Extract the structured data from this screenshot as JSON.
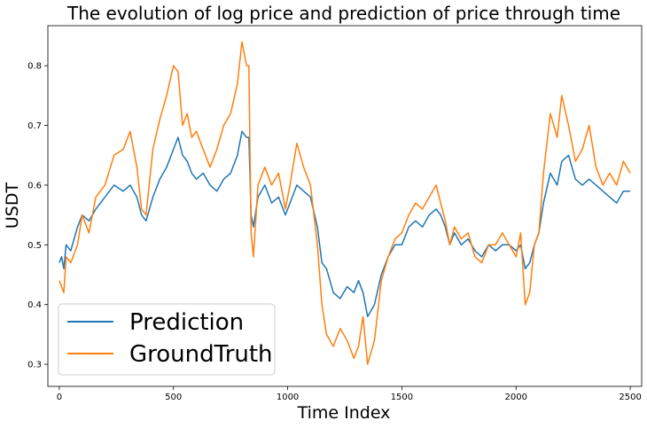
{
  "chart_data": {
    "type": "line",
    "title": "The evolution of log price and prediction of price through time",
    "xlabel": "Time Index",
    "ylabel": "USDT",
    "xlim": [
      -50,
      2550
    ],
    "ylim": [
      0.263,
      0.867
    ],
    "xticks": [
      0,
      500,
      1000,
      1500,
      2000,
      2500
    ],
    "yticks": [
      0.3,
      0.4,
      0.5,
      0.6,
      0.7,
      0.8
    ],
    "xtick_labels": [
      "0",
      "500",
      "1000",
      "1500",
      "2000",
      "2500"
    ],
    "ytick_labels": [
      "0.3",
      "0.4",
      "0.5",
      "0.6",
      "0.7",
      "0.8"
    ],
    "grid": false,
    "legend_position": "lower-left",
    "series": [
      {
        "name": "Prediction",
        "color": "#1f77b4",
        "x": [
          0,
          10,
          20,
          30,
          50,
          80,
          100,
          130,
          160,
          200,
          240,
          280,
          310,
          340,
          360,
          380,
          410,
          440,
          470,
          500,
          520,
          540,
          560,
          580,
          600,
          630,
          660,
          690,
          720,
          750,
          780,
          800,
          820,
          830,
          840,
          850,
          870,
          900,
          930,
          960,
          990,
          1010,
          1040,
          1070,
          1100,
          1130,
          1150,
          1170,
          1200,
          1230,
          1260,
          1290,
          1310,
          1330,
          1350,
          1380,
          1410,
          1440,
          1470,
          1500,
          1530,
          1560,
          1590,
          1620,
          1650,
          1670,
          1690,
          1710,
          1730,
          1760,
          1790,
          1820,
          1850,
          1880,
          1910,
          1940,
          1970,
          2000,
          2020,
          2040,
          2060,
          2080,
          2100,
          2120,
          2150,
          2180,
          2200,
          2230,
          2260,
          2290,
          2320,
          2350,
          2380,
          2410,
          2440,
          2470,
          2500
        ],
        "y": [
          0.47,
          0.48,
          0.46,
          0.5,
          0.49,
          0.53,
          0.55,
          0.54,
          0.56,
          0.58,
          0.6,
          0.59,
          0.6,
          0.58,
          0.55,
          0.54,
          0.58,
          0.61,
          0.63,
          0.66,
          0.68,
          0.65,
          0.64,
          0.62,
          0.61,
          0.62,
          0.6,
          0.59,
          0.61,
          0.62,
          0.65,
          0.69,
          0.68,
          0.68,
          0.55,
          0.53,
          0.58,
          0.6,
          0.57,
          0.58,
          0.55,
          0.57,
          0.6,
          0.59,
          0.58,
          0.53,
          0.47,
          0.46,
          0.42,
          0.41,
          0.43,
          0.42,
          0.44,
          0.42,
          0.38,
          0.4,
          0.45,
          0.48,
          0.5,
          0.5,
          0.53,
          0.54,
          0.53,
          0.55,
          0.56,
          0.55,
          0.53,
          0.5,
          0.52,
          0.5,
          0.51,
          0.49,
          0.48,
          0.5,
          0.49,
          0.5,
          0.5,
          0.49,
          0.5,
          0.46,
          0.47,
          0.5,
          0.52,
          0.57,
          0.62,
          0.6,
          0.64,
          0.65,
          0.61,
          0.6,
          0.61,
          0.6,
          0.59,
          0.58,
          0.57,
          0.59,
          0.59
        ]
      },
      {
        "name": "GroundTruth",
        "color": "#ff7f0e",
        "x": [
          0,
          10,
          20,
          30,
          50,
          80,
          100,
          130,
          160,
          200,
          240,
          280,
          310,
          340,
          360,
          380,
          410,
          440,
          470,
          500,
          520,
          540,
          560,
          580,
          600,
          630,
          660,
          690,
          720,
          750,
          780,
          800,
          820,
          830,
          840,
          850,
          870,
          900,
          930,
          960,
          990,
          1010,
          1040,
          1070,
          1100,
          1130,
          1150,
          1170,
          1200,
          1230,
          1260,
          1290,
          1310,
          1330,
          1350,
          1380,
          1410,
          1440,
          1470,
          1500,
          1530,
          1560,
          1590,
          1620,
          1650,
          1670,
          1690,
          1710,
          1730,
          1760,
          1790,
          1820,
          1850,
          1880,
          1910,
          1940,
          1970,
          2000,
          2020,
          2040,
          2060,
          2080,
          2100,
          2120,
          2150,
          2180,
          2200,
          2230,
          2260,
          2290,
          2320,
          2350,
          2380,
          2410,
          2440,
          2470,
          2500
        ],
        "y": [
          0.44,
          0.43,
          0.42,
          0.48,
          0.47,
          0.5,
          0.55,
          0.52,
          0.58,
          0.6,
          0.65,
          0.66,
          0.69,
          0.63,
          0.56,
          0.55,
          0.66,
          0.71,
          0.75,
          0.8,
          0.79,
          0.7,
          0.72,
          0.68,
          0.69,
          0.66,
          0.63,
          0.66,
          0.7,
          0.72,
          0.77,
          0.84,
          0.8,
          0.8,
          0.52,
          0.48,
          0.6,
          0.63,
          0.6,
          0.62,
          0.56,
          0.6,
          0.67,
          0.63,
          0.6,
          0.5,
          0.4,
          0.35,
          0.33,
          0.36,
          0.34,
          0.31,
          0.33,
          0.38,
          0.3,
          0.34,
          0.44,
          0.48,
          0.51,
          0.52,
          0.55,
          0.57,
          0.56,
          0.58,
          0.6,
          0.57,
          0.54,
          0.5,
          0.53,
          0.51,
          0.52,
          0.48,
          0.47,
          0.5,
          0.5,
          0.52,
          0.5,
          0.48,
          0.52,
          0.4,
          0.42,
          0.5,
          0.52,
          0.62,
          0.72,
          0.68,
          0.75,
          0.7,
          0.64,
          0.66,
          0.7,
          0.63,
          0.6,
          0.62,
          0.6,
          0.64,
          0.62
        ]
      }
    ]
  }
}
